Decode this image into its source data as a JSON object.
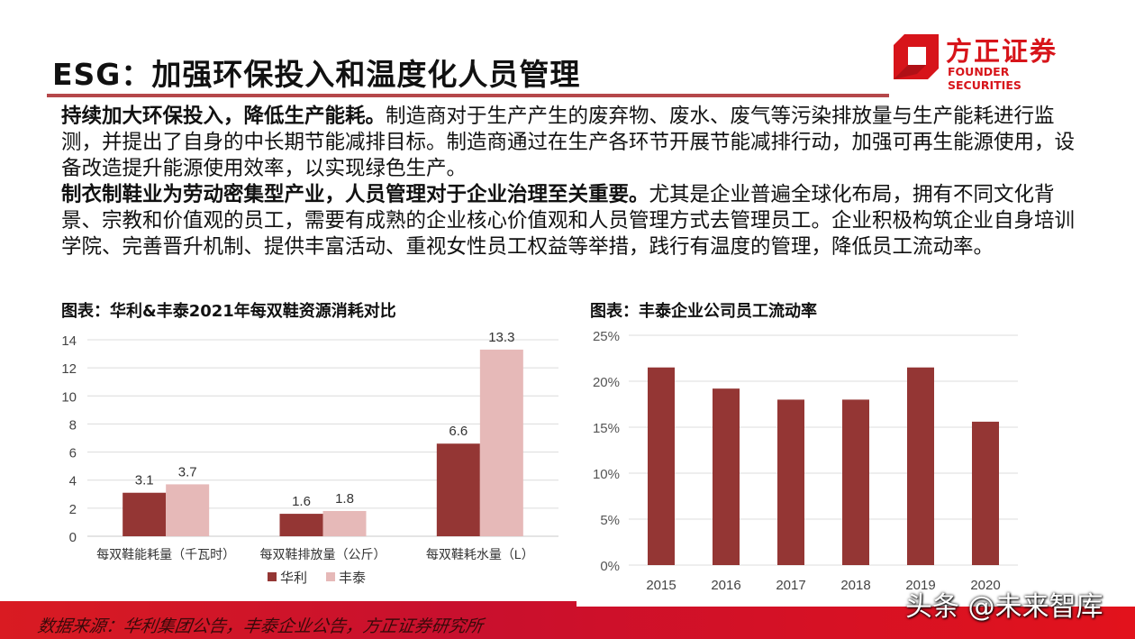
{
  "header": {
    "title": "ESG：加强环保投入和温度化人员管理"
  },
  "logo": {
    "cn": "方正证券",
    "en": "FOUNDER SECURITIES",
    "color": "#d7141a"
  },
  "body": {
    "p1_bold": "持续加大环保投入，降低生产能耗。",
    "p1_text": "制造商对于生产产生的废弃物、废水、废气等污染排放量与生产能耗进行监测，并提出了自身的中长期节能减排目标。制造商通过在生产各环节开展节能减排行动，加强可再生能源使用，设备改造提升能源使用效率，以实现绿色生产。",
    "p2_bold": "制衣制鞋业为劳动密集型产业，人员管理对于企业治理至关重要。",
    "p2_text": "尤其是企业普遍全球化布局，拥有不同文化背景、宗教和价值观的员工，需要有成熟的企业核心价值观和人员管理方式去管理员工。企业积极构筑企业自身培训学院、完善晋升机制、提供丰富活动、重视女性员工权益等举措，践行有温度的管理，降低员工流动率。"
  },
  "chart_data": [
    {
      "type": "bar",
      "title": "图表：华利&丰泰2021年每双鞋资源消耗对比",
      "categories": [
        "每双鞋能耗量（千瓦时）",
        "每双鞋排放量（公斤）",
        "每双鞋耗水量（L）"
      ],
      "series": [
        {
          "name": "华利",
          "values": [
            3.1,
            1.6,
            6.6
          ],
          "color": "#943634"
        },
        {
          "name": "丰泰",
          "values": [
            3.7,
            1.8,
            13.3
          ],
          "color": "#e6b9b8"
        }
      ],
      "ylim": [
        0,
        14
      ],
      "yticks": [
        "0",
        "2",
        "4",
        "6",
        "8",
        "10",
        "12",
        "14"
      ],
      "data_labels": true,
      "grid": true,
      "legend": "bottom"
    },
    {
      "type": "bar",
      "title": "图表：丰泰企业公司员工流动率",
      "categories": [
        "2015",
        "2016",
        "2017",
        "2018",
        "2019",
        "2020"
      ],
      "values": [
        21.5,
        19.2,
        18.0,
        18.0,
        21.5,
        15.6
      ],
      "color": "#943634",
      "ylim": [
        0,
        25
      ],
      "yticks": [
        "0%",
        "5%",
        "10%",
        "15%",
        "20%",
        "25%"
      ],
      "grid": true
    }
  ],
  "footer": {
    "source": "数据来源：华利集团公告，丰泰企业公告，方正证券研究所",
    "watermark": "头条 @未来智库"
  }
}
